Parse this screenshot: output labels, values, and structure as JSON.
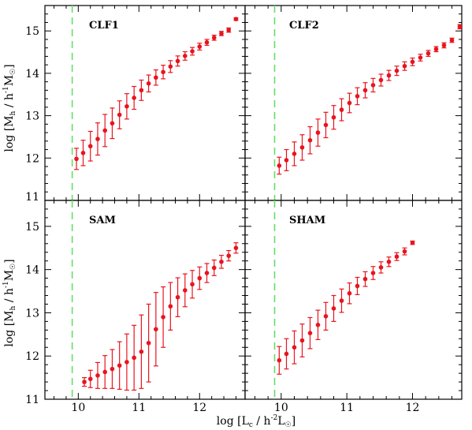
{
  "figure": {
    "xlabel": "log [L",
    "xlabel_sub": "c",
    "xlabel_mid": " / h",
    "xlabel_sup": "-2",
    "xlabel_end": "L",
    "xlabel_sun": "☉",
    "xlabel_close": "]",
    "ylabel": "log [M",
    "ylabel_sub": "h",
    "ylabel_mid": " / h",
    "ylabel_sup": "-1",
    "ylabel_end": "M",
    "ylabel_sun": "☉",
    "ylabel_close": "]"
  },
  "colors": {
    "points": "#e8141e",
    "threshold_line": "#66dd66",
    "frame": "#000000"
  },
  "chart_data": [
    {
      "type": "scatter",
      "panel": "CLF1",
      "xlim": [
        9.45,
        12.75
      ],
      "ylim": [
        11,
        15.6
      ],
      "threshold_x": 9.9,
      "x": [
        9.97,
        10.08,
        10.2,
        10.32,
        10.44,
        10.56,
        10.68,
        10.8,
        10.92,
        11.04,
        11.16,
        11.28,
        11.4,
        11.52,
        11.64,
        11.76,
        11.88,
        12.0,
        12.12,
        12.24,
        12.36
      ],
      "y": [
        11.98,
        12.12,
        12.28,
        12.45,
        12.65,
        12.82,
        13.02,
        13.22,
        13.42,
        13.6,
        13.76,
        13.9,
        14.03,
        14.16,
        14.29,
        14.41,
        14.52,
        14.63,
        14.73,
        14.84,
        14.94
      ],
      "yerr": [
        0.25,
        0.3,
        0.35,
        0.38,
        0.38,
        0.36,
        0.33,
        0.3,
        0.27,
        0.24,
        0.2,
        0.18,
        0.16,
        0.14,
        0.12,
        0.1,
        0.09,
        0.08,
        0.07,
        0.06,
        0.05
      ],
      "extra_points": [
        {
          "x": 12.48,
          "y": 15.02,
          "yerr": 0.05
        },
        {
          "x": 12.6,
          "y": 15.28,
          "yerr": 0.03
        }
      ]
    },
    {
      "type": "scatter",
      "panel": "CLF2",
      "xlim": [
        9.45,
        12.75
      ],
      "ylim": [
        11,
        15.6
      ],
      "threshold_x": 9.9,
      "x": [
        9.97,
        10.08,
        10.2,
        10.32,
        10.44,
        10.56,
        10.68,
        10.8,
        10.92,
        11.04,
        11.16,
        11.28,
        11.4,
        11.52,
        11.64,
        11.76,
        11.88,
        12.0,
        12.12,
        12.24,
        12.36,
        12.48
      ],
      "y": [
        11.82,
        11.95,
        12.1,
        12.25,
        12.42,
        12.6,
        12.78,
        12.96,
        13.14,
        13.3,
        13.46,
        13.6,
        13.72,
        13.84,
        13.95,
        14.06,
        14.17,
        14.27,
        14.37,
        14.47,
        14.57,
        14.66
      ],
      "yerr": [
        0.2,
        0.25,
        0.28,
        0.3,
        0.32,
        0.32,
        0.3,
        0.28,
        0.26,
        0.23,
        0.2,
        0.18,
        0.16,
        0.14,
        0.12,
        0.11,
        0.1,
        0.09,
        0.08,
        0.07,
        0.06,
        0.06
      ],
      "extra_points": [
        {
          "x": 12.6,
          "y": 14.78,
          "yerr": 0.05
        },
        {
          "x": 12.72,
          "y": 15.1,
          "yerr": 0.05
        }
      ]
    },
    {
      "type": "scatter",
      "panel": "SAM",
      "xlim": [
        9.45,
        12.75
      ],
      "ylim": [
        11,
        15.6
      ],
      "threshold_x": 9.9,
      "x": [
        10.1,
        10.2,
        10.32,
        10.44,
        10.56,
        10.68,
        10.8,
        10.92,
        11.04,
        11.16,
        11.28,
        11.4,
        11.52,
        11.64,
        11.76,
        11.88,
        12.0,
        12.12,
        12.24,
        12.36,
        12.48,
        12.6
      ],
      "y": [
        11.4,
        11.47,
        11.55,
        11.63,
        11.7,
        11.78,
        11.86,
        11.96,
        12.1,
        12.3,
        12.62,
        12.9,
        13.15,
        13.36,
        13.52,
        13.66,
        13.8,
        13.92,
        14.04,
        14.18,
        14.32,
        14.5
      ],
      "yerr": [
        0.1,
        0.2,
        0.3,
        0.38,
        0.45,
        0.55,
        0.65,
        0.75,
        0.85,
        0.9,
        0.85,
        0.7,
        0.55,
        0.45,
        0.38,
        0.32,
        0.26,
        0.22,
        0.18,
        0.15,
        0.12,
        0.12
      ]
    },
    {
      "type": "scatter",
      "panel": "SHAM",
      "xlim": [
        9.45,
        12.75
      ],
      "ylim": [
        11,
        15.6
      ],
      "threshold_x": 9.9,
      "x": [
        9.97,
        10.08,
        10.2,
        10.32,
        10.44,
        10.56,
        10.68,
        10.8,
        10.92,
        11.04,
        11.16,
        11.28,
        11.4,
        11.52,
        11.64,
        11.76,
        11.88,
        12.0
      ],
      "y": [
        11.9,
        12.05,
        12.2,
        12.36,
        12.53,
        12.72,
        12.92,
        13.1,
        13.28,
        13.45,
        13.62,
        13.78,
        13.92,
        14.05,
        14.18,
        14.3,
        14.42,
        14.62
      ],
      "yerr": [
        0.32,
        0.35,
        0.38,
        0.38,
        0.36,
        0.34,
        0.32,
        0.3,
        0.27,
        0.24,
        0.2,
        0.17,
        0.15,
        0.13,
        0.11,
        0.09,
        0.08,
        0.04
      ]
    }
  ],
  "ticks": {
    "x": [
      "10",
      "11",
      "12"
    ],
    "y_top": [
      "12",
      "13",
      "14",
      "15"
    ],
    "y_bottom": [
      "11",
      "12",
      "13",
      "14",
      "15"
    ],
    "y_top_bottom_edge": "11"
  }
}
